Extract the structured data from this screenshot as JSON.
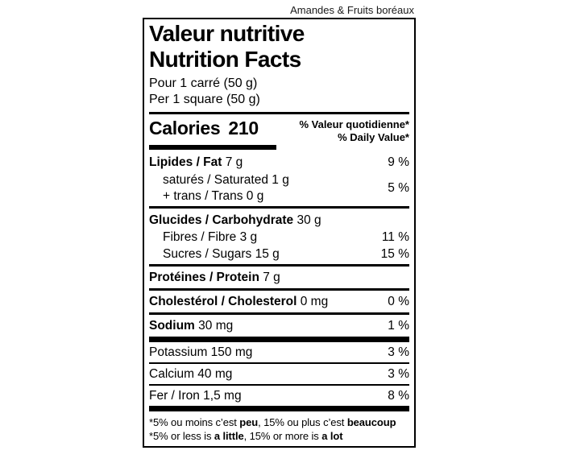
{
  "product_name": "Amandes & Fruits boréaux",
  "colors": {
    "ink": "#000000",
    "background": "#ffffff"
  },
  "label": {
    "title_fr": "Valeur nutritive",
    "title_en": "Nutrition Facts",
    "serving_fr": "Pour 1 carré (50 g)",
    "serving_en": "Per 1 square (50 g)",
    "calories_label": "Calories",
    "calories_value": "210",
    "dv_header_fr": "% Valeur quotidienne*",
    "dv_header_en": "% Daily Value*"
  },
  "nutrients": {
    "fat": {
      "name_bold": "Lipides / Fat",
      "name_rest": " 7 g",
      "dv": "9 %"
    },
    "saturated": {
      "name": "saturés / Saturated 1 g"
    },
    "trans": {
      "name": "+ trans / Trans 0 g",
      "dv": "5 %"
    },
    "carbohydrate": {
      "name_bold": "Glucides / Carbohydrate",
      "name_rest": " 30 g"
    },
    "fibre": {
      "name": "Fibres / Fibre 3 g",
      "dv": "11 %"
    },
    "sugars": {
      "name": "Sucres / Sugars 15 g",
      "dv": "15 %"
    },
    "protein": {
      "name_bold": "Protéines / Protein",
      "name_rest": " 7 g"
    },
    "cholesterol": {
      "name_bold": "Cholestérol / Cholesterol",
      "name_rest": " 0 mg",
      "dv": "0 %"
    },
    "sodium": {
      "name_bold": "Sodium",
      "name_rest": " 30 mg",
      "dv": "1 %"
    },
    "potassium": {
      "name": "Potassium 150 mg",
      "dv": "3 %"
    },
    "calcium": {
      "name": "Calcium 40 mg",
      "dv": "3 %"
    },
    "iron": {
      "name": "Fer / Iron 1,5 mg",
      "dv": "8 %"
    }
  },
  "footnote": {
    "fr_pre": "*5% ou moins c’est ",
    "fr_bold1": "peu",
    "fr_mid": ", 15% ou plus c’est ",
    "fr_bold2": "beaucoup",
    "en_pre": "*5% or less is ",
    "en_bold1": "a little",
    "en_mid": ", 15% or more is ",
    "en_bold2": "a lot"
  }
}
